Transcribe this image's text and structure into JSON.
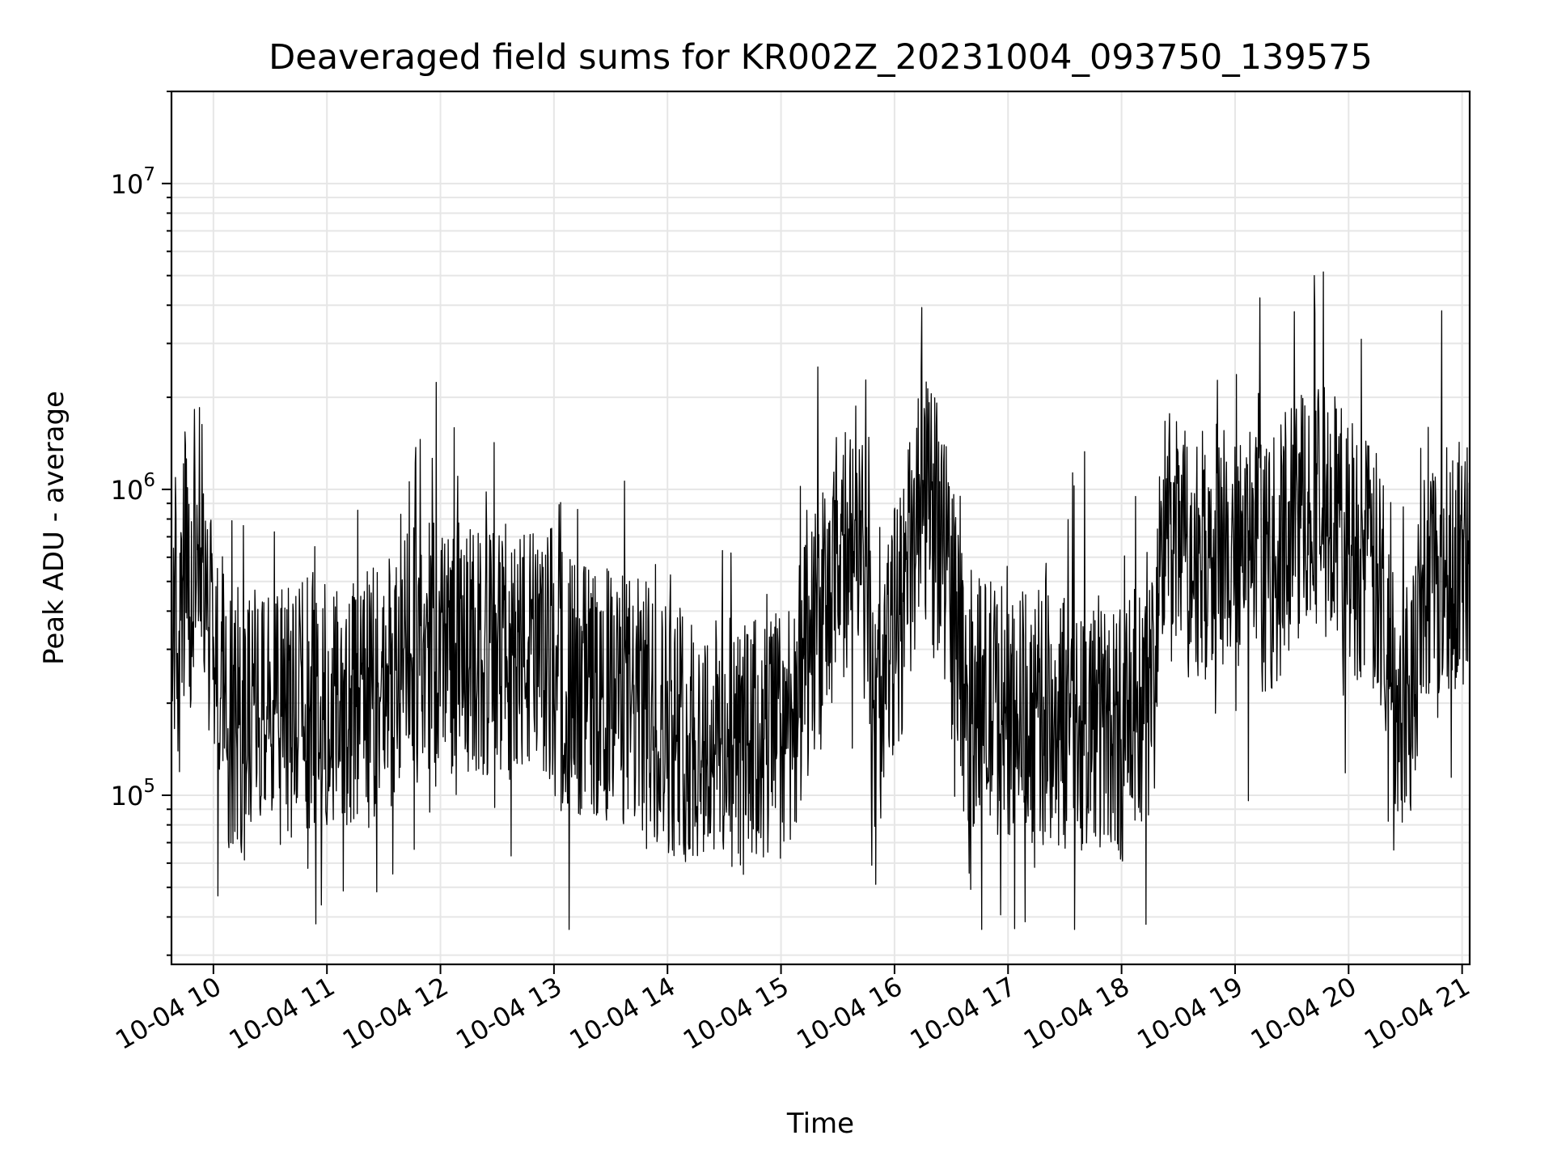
{
  "chart_data": {
    "type": "line",
    "title": "Deaveraged field sums for KR002Z_20231004_093750_139575",
    "xlabel": "Time",
    "ylabel": "Peak ADU - average",
    "xscale": "time",
    "yscale": "log",
    "grid": true,
    "line_color": "#000000",
    "grid_color": "#e6e6e6",
    "xlim": [
      "2023-10-04 09:37:50",
      "2023-10-04 21:04:00"
    ],
    "ylim": [
      28000,
      20000000
    ],
    "x_ticks": [
      {
        "value": "2023-10-04 10:00",
        "label": "10-04 10"
      },
      {
        "value": "2023-10-04 11:00",
        "label": "10-04 11"
      },
      {
        "value": "2023-10-04 12:00",
        "label": "10-04 12"
      },
      {
        "value": "2023-10-04 13:00",
        "label": "10-04 13"
      },
      {
        "value": "2023-10-04 14:00",
        "label": "10-04 14"
      },
      {
        "value": "2023-10-04 15:00",
        "label": "10-04 15"
      },
      {
        "value": "2023-10-04 16:00",
        "label": "10-04 16"
      },
      {
        "value": "2023-10-04 17:00",
        "label": "10-04 17"
      },
      {
        "value": "2023-10-04 18:00",
        "label": "10-04 18"
      },
      {
        "value": "2023-10-04 19:00",
        "label": "10-04 19"
      },
      {
        "value": "2023-10-04 20:00",
        "label": "10-04 20"
      },
      {
        "value": "2023-10-04 21:00",
        "label": "10-04 21"
      }
    ],
    "y_ticks": [
      {
        "value": 100000,
        "base": "10",
        "exp": "5"
      },
      {
        "value": 1000000,
        "base": "10",
        "exp": "6"
      },
      {
        "value": 10000000,
        "base": "10",
        "exp": "7"
      }
    ],
    "series": [
      {
        "points": [
          [
            "2023-10-04 09:38",
            300000
          ],
          [
            "2023-10-04 09:40",
            450000
          ],
          [
            "2023-10-04 09:42",
            250000
          ],
          [
            "2023-10-04 09:45",
            600000
          ],
          [
            "2023-10-04 09:48",
            350000
          ],
          [
            "2023-10-04 09:52",
            900000
          ],
          [
            "2023-10-04 09:55",
            500000
          ],
          [
            "2023-10-04 09:58",
            400000
          ],
          [
            "2023-10-04 10:00",
            300000
          ],
          [
            "2023-10-04 10:05",
            220000
          ],
          [
            "2023-10-04 10:10",
            180000
          ],
          [
            "2023-10-04 10:15",
            150000
          ],
          [
            "2023-10-04 10:20",
            200000
          ],
          [
            "2023-10-04 10:30",
            170000
          ],
          [
            "2023-10-04 10:40",
            190000
          ],
          [
            "2023-10-04 10:50",
            200000
          ],
          [
            "2023-10-04 11:00",
            210000
          ],
          [
            "2023-10-04 11:10",
            180000
          ],
          [
            "2023-10-04 11:20",
            200000
          ],
          [
            "2023-10-04 11:30",
            230000
          ],
          [
            "2023-10-04 11:40",
            260000
          ],
          [
            "2023-10-04 11:50",
            300000
          ],
          [
            "2023-10-04 12:00",
            320000
          ],
          [
            "2023-10-04 12:10",
            300000
          ],
          [
            "2023-10-04 12:20",
            280000
          ],
          [
            "2023-10-04 12:30",
            290000
          ],
          [
            "2023-10-04 12:40",
            300000
          ],
          [
            "2023-10-04 12:50",
            280000
          ],
          [
            "2023-10-04 13:00",
            260000
          ],
          [
            "2023-10-04 13:10",
            230000
          ],
          [
            "2023-10-04 13:20",
            220000
          ],
          [
            "2023-10-04 13:30",
            210000
          ],
          [
            "2023-10-04 13:40",
            200000
          ],
          [
            "2023-10-04 13:50",
            190000
          ],
          [
            "2023-10-04 14:00",
            170000
          ],
          [
            "2023-10-04 14:10",
            160000
          ],
          [
            "2023-10-04 14:20",
            150000
          ],
          [
            "2023-10-04 14:30",
            150000
          ],
          [
            "2023-10-04 14:40",
            140000
          ],
          [
            "2023-10-04 14:50",
            150000
          ],
          [
            "2023-10-04 15:00",
            160000
          ],
          [
            "2023-10-04 15:10",
            220000
          ],
          [
            "2023-10-04 15:20",
            350000
          ],
          [
            "2023-10-04 15:30",
            500000
          ],
          [
            "2023-10-04 15:40",
            800000
          ],
          [
            "2023-10-04 15:45",
            1000000
          ],
          [
            "2023-10-04 15:48",
            150000
          ],
          [
            "2023-10-04 15:55",
            250000
          ],
          [
            "2023-10-04 16:05",
            450000
          ],
          [
            "2023-10-04 16:15",
            900000
          ],
          [
            "2023-10-04 16:25",
            700000
          ],
          [
            "2023-10-04 16:30",
            500000
          ],
          [
            "2023-10-04 16:35",
            220000
          ],
          [
            "2023-10-04 16:45",
            200000
          ],
          [
            "2023-10-04 17:00",
            190000
          ],
          [
            "2023-10-04 17:15",
            180000
          ],
          [
            "2023-10-04 17:30",
            170000
          ],
          [
            "2023-10-04 17:45",
            180000
          ],
          [
            "2023-10-04 18:00",
            160000
          ],
          [
            "2023-10-04 18:15",
            200000
          ],
          [
            "2023-10-04 18:22",
            700000
          ],
          [
            "2023-10-04 18:40",
            600000
          ],
          [
            "2023-10-04 19:00",
            650000
          ],
          [
            "2023-10-04 19:20",
            550000
          ],
          [
            "2023-10-04 19:40",
            1000000
          ],
          [
            "2023-10-04 20:00",
            700000
          ],
          [
            "2023-10-04 20:15",
            500000
          ],
          [
            "2023-10-04 20:25",
            230000
          ],
          [
            "2023-10-04 20:35",
            250000
          ],
          [
            "2023-10-04 20:40",
            500000
          ],
          [
            "2023-10-04 20:50",
            600000
          ],
          [
            "2023-10-04 21:00",
            550000
          ],
          [
            "2023-10-04 21:04",
            600000
          ]
        ]
      }
    ]
  }
}
